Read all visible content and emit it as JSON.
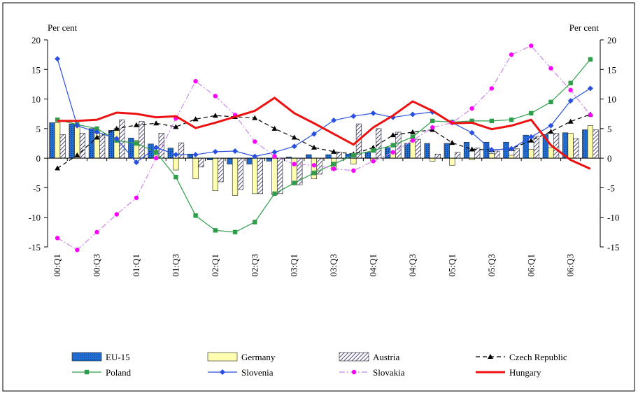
{
  "chart_data": {
    "type": "bar_line",
    "y_label": "Per cent",
    "y2_label": "Per cent",
    "categories": [
      "00:Q1",
      null,
      "00:Q3",
      null,
      "01:Q1",
      null,
      "01:Q3",
      null,
      "02:Q1",
      null,
      "02:Q3",
      null,
      "03:Q1",
      null,
      "03:Q3",
      null,
      "04:Q1",
      null,
      "04:Q3",
      null,
      "05:Q1",
      null,
      "05:Q3",
      null,
      "06:Q1",
      null,
      "06:Q3",
      null
    ],
    "ylim": [
      -15,
      20
    ],
    "yticks": [
      -15,
      -10,
      -5,
      0,
      5,
      10,
      15,
      20
    ],
    "y2lim": [
      -15,
      20
    ],
    "y2ticks": [
      -15,
      -10,
      -5,
      0,
      5,
      10,
      15,
      20
    ],
    "series": [
      {
        "name": "EU-15",
        "style": "bar",
        "color": "#1f6fd6",
        "values": [
          6,
          5.8,
          5,
          4.7,
          3.4,
          2.4,
          1.7,
          0.7,
          -0.3,
          -1,
          -1,
          -0.5,
          0.2,
          0.6,
          0.6,
          0.7,
          1,
          1.8,
          2.5,
          2.5,
          2.5,
          2.7,
          2.7,
          2.7,
          3.9,
          4,
          4.3,
          4.8
        ]
      },
      {
        "name": "Germany",
        "style": "bar",
        "color": "#ffffb0",
        "values": [
          6,
          5.5,
          4.5,
          5,
          3,
          0.5,
          -2,
          -3.5,
          -5.5,
          -6.3,
          -6,
          -6.2,
          -4.5,
          -3.5,
          -2,
          -1,
          -0.5,
          1,
          3,
          -0.5,
          -1.2,
          -0.3,
          0.8,
          0.5,
          1.5,
          1.8,
          4.2,
          5.5
        ]
      },
      {
        "name": "Austria",
        "style": "bar",
        "color": "#4a4a7a",
        "values": [
          4,
          4.2,
          3.8,
          6.5,
          6.2,
          4.2,
          2.6,
          -1.5,
          -4,
          -5.3,
          -6,
          -6,
          -4.5,
          -2.7,
          1,
          5.8,
          5,
          4.4,
          3.2,
          0.7,
          1,
          1.7,
          1.2,
          1.6,
          3.7,
          4.2,
          3.3,
          4.8
        ]
      },
      {
        "name": "Czech Republic",
        "style": "line",
        "color": "#000000",
        "marker": "triangle",
        "dash": "6,4",
        "values": [
          -1.7,
          0.5,
          3.5,
          5,
          5.6,
          5.9,
          5.3,
          6.6,
          7.2,
          7,
          6.8,
          5,
          3.5,
          1.8,
          1.1,
          0.7,
          1.8,
          3.9,
          4.4,
          4.8,
          2.6,
          1.5,
          1.4,
          1.6,
          3,
          4.5,
          6.2,
          7.4
        ]
      },
      {
        "name": "Poland",
        "style": "line",
        "color": "#2e9e4a",
        "marker": "square",
        "values": [
          6.5,
          5.7,
          5,
          3,
          2.5,
          1,
          -3.2,
          -9.7,
          -12.2,
          -12.5,
          -10.8,
          -6,
          -4.2,
          -2.5,
          -1,
          0.5,
          1.3,
          2.2,
          3.6,
          6.3,
          6.1,
          6.3,
          6.3,
          6.5,
          7.6,
          9.5,
          12.7,
          16.7
        ]
      },
      {
        "name": "Slovenia",
        "style": "line",
        "color": "#2850e0",
        "marker": "diamond",
        "values": [
          16.8,
          5.5,
          4.4,
          3.3,
          -0.7,
          1.8,
          0.6,
          0.6,
          1.1,
          1.2,
          0.3,
          1,
          2,
          4.1,
          6.4,
          7.1,
          7.6,
          6.9,
          7.4,
          7.8,
          6,
          4.3,
          1.4,
          1.6,
          3.6,
          5.5,
          9.7,
          11.8
        ]
      },
      {
        "name": "Slovakia",
        "style": "line",
        "color": "#cc88ee",
        "marker": "circle",
        "marker_color": "#ff00ff",
        "dash": "8,3,2,3",
        "values": [
          -13.5,
          -15.5,
          -12.5,
          -9.5,
          -6.7,
          0,
          6.7,
          13,
          10.5,
          7.3,
          2.8,
          0.3,
          -1,
          -1.2,
          -1.8,
          -2.1,
          -0.5,
          1,
          3,
          5.2,
          6,
          8.4,
          11.8,
          17.5,
          19,
          15.2,
          11.5,
          7.3
        ]
      },
      {
        "name": "Hungary",
        "style": "line",
        "color": "#ee1111",
        "width": 3,
        "values": [
          6.3,
          6.3,
          6.5,
          7.7,
          7.5,
          6.9,
          7.1,
          5.1,
          6,
          7,
          8,
          10.2,
          7.6,
          5.9,
          4.1,
          2.3,
          5.2,
          7.2,
          9.6,
          8,
          5.9,
          6,
          4.9,
          5.5,
          6.5,
          2.2,
          -0.3,
          -1.8
        ]
      }
    ]
  }
}
